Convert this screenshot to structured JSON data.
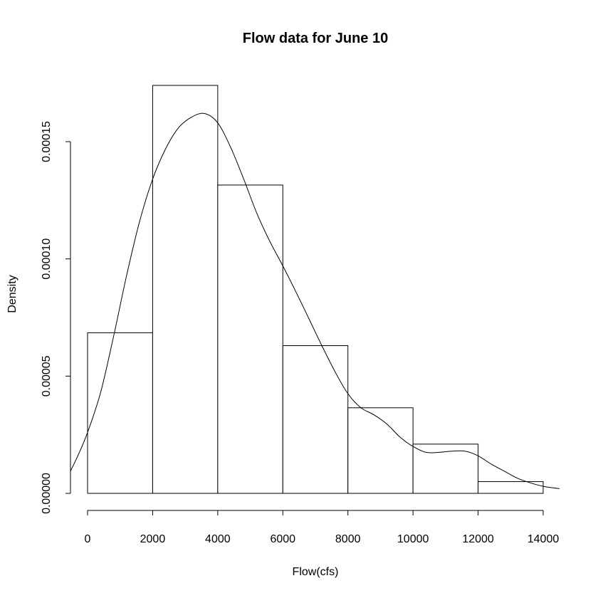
{
  "chart_data": {
    "type": "histogram",
    "title": "Flow data for June 10",
    "xlabel": "Flow(cfs)",
    "ylabel": "Density",
    "xlim": [
      -700,
      14600
    ],
    "ylim": [
      0,
      0.000175
    ],
    "x_ticks": [
      0,
      2000,
      4000,
      6000,
      8000,
      10000,
      12000,
      14000
    ],
    "x_tick_labels": [
      "0",
      "2000",
      "4000",
      "6000",
      "8000",
      "10000",
      "12000",
      "14000"
    ],
    "y_ticks": [
      0,
      5e-05,
      0.0001,
      0.00015
    ],
    "y_tick_labels": [
      "0.00000",
      "0.00005",
      "0.00010",
      "0.00015"
    ],
    "bins": [
      {
        "start": 0,
        "end": 2000,
        "density": 6.85e-05
      },
      {
        "start": 2000,
        "end": 4000,
        "density": 0.000174
      },
      {
        "start": 4000,
        "end": 6000,
        "density": 0.0001315
      },
      {
        "start": 6000,
        "end": 8000,
        "density": 6.3e-05
      },
      {
        "start": 8000,
        "end": 10000,
        "density": 3.65e-05
      },
      {
        "start": 10000,
        "end": 12000,
        "density": 2.1e-05
      },
      {
        "start": 12000,
        "end": 14000,
        "density": 5e-06
      }
    ],
    "density_curve": {
      "x": [
        -600,
        -300,
        0,
        400,
        800,
        1200,
        1600,
        2000,
        2400,
        2800,
        3200,
        3600,
        4000,
        4400,
        4800,
        5200,
        5600,
        6000,
        6400,
        6800,
        7200,
        7600,
        8000,
        8400,
        8800,
        9200,
        9600,
        10000,
        10400,
        10800,
        11200,
        11600,
        12000,
        12400,
        12800,
        13200,
        13600,
        14000,
        14500
      ],
      "y": [
        9.5e-06,
        1.6e-05,
        2.6e-05,
        4.3e-05,
        6.7e-05,
        9.3e-05,
        0.000116,
        0.000134,
        0.000147,
        0.000156,
        0.0001605,
        0.000162,
        0.000158,
        0.0001475,
        0.000134,
        0.0001195,
        0.0001075,
        9.7e-05,
        8.6e-05,
        7.45e-05,
        6.3e-05,
        5.2e-05,
        4.25e-05,
        3.65e-05,
        3.35e-05,
        2.95e-05,
        2.4e-05,
        2e-05,
        1.75e-05,
        1.75e-05,
        1.8e-05,
        1.8e-05,
        1.6e-05,
        1.25e-05,
        9.5e-06,
        6.5e-06,
        4.5e-06,
        3e-06,
        2e-06
      ]
    }
  }
}
